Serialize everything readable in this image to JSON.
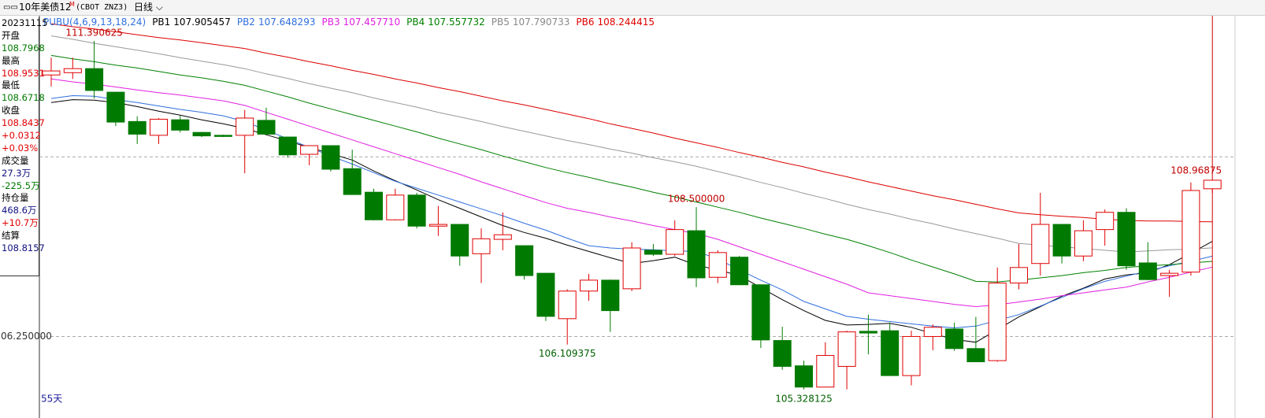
{
  "toolbar": {
    "title": "10年美债12",
    "title_mark": "M",
    "symbol": "(CBOT ZNZ3)",
    "period": "日线"
  },
  "info_panel": {
    "date": "20231115",
    "rows": [
      {
        "label": "开盘",
        "lines": [
          "108.7968"
        ]
      },
      {
        "label": "最高",
        "lines": [
          "108.9531"
        ]
      },
      {
        "label": "最低",
        "lines": [
          "108.6718"
        ]
      },
      {
        "label": "收盘",
        "lines": [
          "108.8437",
          "+0.0312",
          "+0.03%"
        ]
      },
      {
        "label": "成交量",
        "lines": [
          "27.3万",
          "-225.5万"
        ]
      },
      {
        "label": "持仓量",
        "lines": [
          "468.6万",
          "+10.7万"
        ]
      },
      {
        "label": "结算",
        "lines": [
          "108.8157"
        ]
      }
    ]
  },
  "chart_data": {
    "type": "candlestick",
    "indicator": "PUBU(4,6,9,13,18,24)",
    "count_label": "55天",
    "up_color": "#e00000",
    "down_color": "#007a00",
    "open": [
      110.8,
      110.84,
      110.91,
      110.5,
      109.99,
      109.75,
      110.02,
      109.8,
      109.75,
      109.75,
      110.01,
      109.72,
      109.42,
      109.57,
      109.17,
      108.76,
      108.28,
      108.71,
      108.17,
      108.2,
      107.69,
      107.94,
      107.83,
      107.35,
      106.56,
      107.04,
      107.23,
      107.08,
      107.75,
      107.68,
      108.09,
      107.28,
      107.63,
      107.15,
      106.18,
      105.74,
      105.37,
      105.73,
      106.34,
      106.35,
      105.57,
      106.25,
      106.38,
      106.04,
      105.83,
      107.18,
      107.52,
      108.2,
      107.65,
      108.11,
      108.41,
      107.53,
      107.31,
      107.37,
      108.82
    ],
    "high": [
      111.1,
      111.1,
      111.390625,
      110.5,
      110.08,
      110.05,
      110.09,
      109.81,
      109.76,
      110.19,
      110.23,
      109.72,
      109.57,
      109.57,
      109.5,
      108.82,
      108.82,
      108.75,
      108.52,
      108.2,
      108.13,
      108.41,
      107.83,
      107.35,
      107.07,
      107.34,
      107.24,
      107.89,
      107.86,
      108.27,
      108.5,
      107.75,
      107.65,
      107.15,
      106.42,
      105.83,
      106.15,
      106.35,
      106.63,
      106.49,
      106.35,
      106.46,
      106.49,
      106.59,
      107.45,
      107.86,
      108.75,
      108.2,
      108.27,
      108.46,
      108.48,
      107.89,
      107.41,
      108.93,
      108.97
    ],
    "low": [
      110.6,
      110.73,
      110.39,
      109.91,
      109.6,
      109.6,
      109.8,
      109.72,
      109.72,
      109.09,
      109.75,
      109.36,
      109.23,
      109.12,
      108.72,
      108.27,
      108.27,
      108.13,
      108.0,
      107.48,
      107.18,
      107.75,
      107.24,
      106.52,
      106.109375,
      106.87,
      106.33,
      107.04,
      107.65,
      107.65,
      107.11,
      107.18,
      107.15,
      106.05,
      105.67,
      105.328125,
      105.37,
      105.33,
      105.94,
      105.57,
      105.4,
      106.01,
      106.0,
      105.81,
      105.81,
      107.07,
      107.31,
      107.52,
      107.56,
      107.83,
      107.41,
      107.23,
      106.94,
      107.31,
      108.75
    ],
    "close": [
      110.87,
      110.91,
      110.53,
      109.98,
      109.77,
      110.03,
      109.84,
      109.74,
      109.73,
      110.05,
      109.77,
      109.41,
      109.57,
      109.16,
      108.72,
      108.28,
      108.71,
      108.17,
      108.2,
      107.65,
      107.95,
      108.02,
      107.31,
      106.6,
      107.04,
      107.23,
      106.7,
      107.79,
      107.68,
      108.11,
      107.27,
      107.71,
      107.15,
      106.19,
      105.73,
      105.37,
      105.92,
      106.33,
      106.31,
      105.57,
      106.25,
      106.41,
      106.04,
      105.81,
      107.18,
      107.45,
      108.2,
      107.65,
      108.09,
      108.41,
      107.48,
      107.24,
      107.35,
      108.79,
      108.96875
    ],
    "series": [
      {
        "name": "PB1",
        "legend_value": "107.905457",
        "color": "#000000",
        "values": [
          110.32,
          110.37,
          110.36,
          110.32,
          110.25,
          110.17,
          110.1,
          110.02,
          109.95,
          109.87,
          109.76,
          109.65,
          109.54,
          109.43,
          109.32,
          109.13,
          108.96,
          108.8,
          108.63,
          108.48,
          108.33,
          108.18,
          108.06,
          107.96,
          107.84,
          107.73,
          107.62,
          107.52,
          107.57,
          107.63,
          107.49,
          107.41,
          107.31,
          107.1,
          106.89,
          106.7,
          106.53,
          106.45,
          106.46,
          106.48,
          106.41,
          106.3,
          106.2,
          106.15,
          106.37,
          106.59,
          106.77,
          106.95,
          107.09,
          107.25,
          107.32,
          107.36,
          107.5,
          107.7,
          107.905457
        ]
      },
      {
        "name": "PB2",
        "legend_value": "107.648293",
        "color": "#2f6fdd",
        "values": [
          110.39,
          110.44,
          110.43,
          110.37,
          110.32,
          110.26,
          110.2,
          110.15,
          110.09,
          109.99,
          109.84,
          109.69,
          109.54,
          109.39,
          109.25,
          109.1,
          108.95,
          108.83,
          108.71,
          108.59,
          108.47,
          108.35,
          108.22,
          108.1,
          107.96,
          107.83,
          107.79,
          107.77,
          107.76,
          107.74,
          107.73,
          107.6,
          107.41,
          107.23,
          107.06,
          106.86,
          106.73,
          106.6,
          106.55,
          106.51,
          106.47,
          106.43,
          106.4,
          106.43,
          106.53,
          106.63,
          106.78,
          106.93,
          107.08,
          107.21,
          107.3,
          107.39,
          107.48,
          107.56,
          107.648293
        ]
      },
      {
        "name": "PB3",
        "legend_value": "107.457710",
        "color": "#e020e0",
        "values": [
          110.73,
          110.68,
          110.64,
          110.59,
          110.54,
          110.49,
          110.45,
          110.4,
          110.35,
          110.27,
          110.15,
          110.03,
          109.91,
          109.79,
          109.67,
          109.55,
          109.43,
          109.31,
          109.19,
          109.07,
          108.94,
          108.82,
          108.7,
          108.58,
          108.48,
          108.41,
          108.33,
          108.26,
          108.18,
          108.11,
          108.04,
          107.94,
          107.81,
          107.68,
          107.55,
          107.42,
          107.29,
          107.16,
          107.01,
          106.96,
          106.91,
          106.86,
          106.81,
          106.77,
          106.8,
          106.85,
          106.9,
          106.96,
          107.01,
          107.06,
          107.11,
          107.2,
          107.28,
          107.37,
          107.45771
        ]
      },
      {
        "name": "PB4",
        "legend_value": "107.557732",
        "color": "#008000",
        "values": [
          111.14,
          111.08,
          111.03,
          110.97,
          110.92,
          110.86,
          110.8,
          110.75,
          110.69,
          110.62,
          110.52,
          110.42,
          110.31,
          110.21,
          110.11,
          110.01,
          109.91,
          109.81,
          109.7,
          109.6,
          109.5,
          109.39,
          109.29,
          109.19,
          109.1,
          109.02,
          108.93,
          108.85,
          108.76,
          108.68,
          108.59,
          108.5,
          108.41,
          108.31,
          108.22,
          108.13,
          108.03,
          107.94,
          107.83,
          107.71,
          107.58,
          107.46,
          107.34,
          107.21,
          107.2,
          107.23,
          107.27,
          107.31,
          107.36,
          107.4,
          107.45,
          107.48,
          107.5,
          107.53,
          107.557732
        ]
      },
      {
        "name": "PB5",
        "legend_value": "107.790733",
        "color": "#999999",
        "values": [
          111.48,
          111.42,
          111.35,
          111.29,
          111.23,
          111.17,
          111.1,
          111.04,
          110.98,
          110.91,
          110.82,
          110.74,
          110.65,
          110.57,
          110.49,
          110.4,
          110.32,
          110.24,
          110.15,
          110.07,
          109.99,
          109.9,
          109.82,
          109.74,
          109.66,
          109.59,
          109.51,
          109.44,
          109.36,
          109.29,
          109.21,
          109.12,
          109.03,
          108.93,
          108.84,
          108.74,
          108.65,
          108.55,
          108.46,
          108.38,
          108.29,
          108.21,
          108.12,
          108.04,
          107.96,
          107.87,
          107.84,
          107.81,
          107.78,
          107.75,
          107.72,
          107.74,
          107.76,
          107.77,
          107.790733
        ]
      },
      {
        "name": "PB6",
        "legend_value": "108.244415",
        "color": "#dd0000",
        "values": [
          111.69,
          111.64,
          111.6,
          111.55,
          111.5,
          111.45,
          111.41,
          111.36,
          111.31,
          111.26,
          111.18,
          111.11,
          111.03,
          110.96,
          110.88,
          110.81,
          110.73,
          110.66,
          110.58,
          110.51,
          110.43,
          110.35,
          110.28,
          110.2,
          110.12,
          110.04,
          109.95,
          109.87,
          109.79,
          109.7,
          109.62,
          109.54,
          109.45,
          109.37,
          109.28,
          109.2,
          109.11,
          109.03,
          108.94,
          108.86,
          108.78,
          108.7,
          108.63,
          108.55,
          108.47,
          108.4,
          108.37,
          108.34,
          108.32,
          108.29,
          108.27,
          108.26,
          108.26,
          108.25,
          108.244415
        ]
      }
    ],
    "annotations": [
      {
        "label": "111.390625",
        "value": 111.390625
      },
      {
        "label": "108.500000",
        "value": 108.5
      },
      {
        "label": "106.109375",
        "value": 106.109375
      },
      {
        "label": "105.328125",
        "value": 105.328125
      },
      {
        "label": "108.96875",
        "value": 108.96875
      }
    ],
    "ylim": [
      105.01,
      111.83
    ],
    "yticks": [
      {
        "value": 106.25,
        "label": "06.250000"
      },
      109.375
    ],
    "grid": true
  }
}
